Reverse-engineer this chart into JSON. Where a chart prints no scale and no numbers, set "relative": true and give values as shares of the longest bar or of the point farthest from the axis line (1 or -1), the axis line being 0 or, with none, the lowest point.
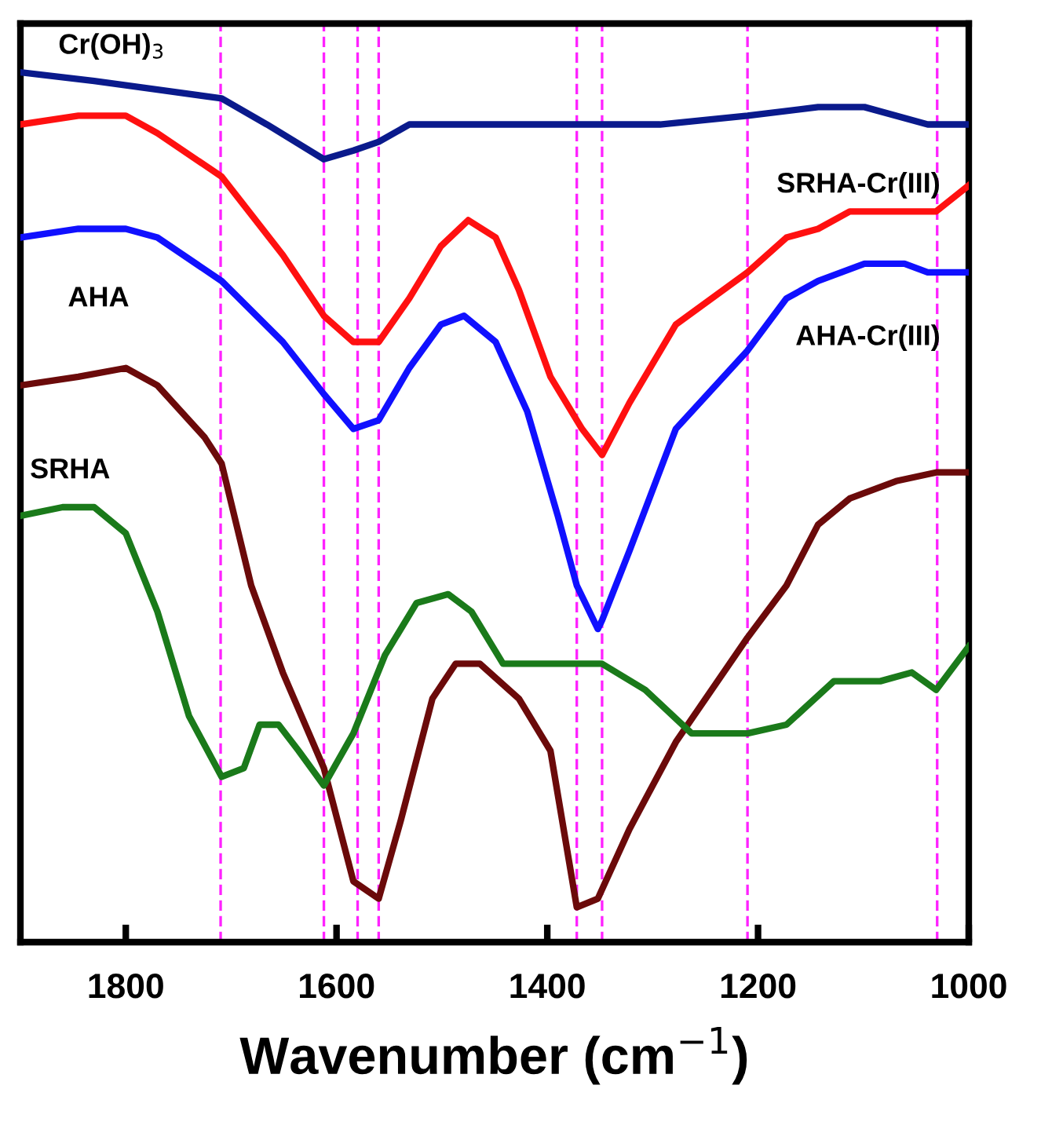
{
  "chart_data": {
    "type": "line",
    "relative": true,
    "xlabel": "Wavenumber (cm$^{−1}$)",
    "xlim": [
      1900,
      1000
    ],
    "xticks": [
      1800,
      1600,
      1400,
      1200,
      1000
    ],
    "tick_labels": "x",
    "grid": false,
    "legend": false,
    "line_style": "solid",
    "marker": "none",
    "series": [
      {
        "name": "Cr(OH)$_{3}$",
        "color": "#0a1a8c",
        "x": [
          1900,
          1830,
          1770,
          1709,
          1666,
          1612,
          1584,
          1560,
          1531,
          1472,
          1397,
          1348,
          1293,
          1210,
          1143,
          1099,
          1039,
          1000
        ],
        "values": [
          1.0,
          0.99,
          0.98,
          0.97,
          0.94,
          0.9,
          0.91,
          0.92,
          0.94,
          0.94,
          0.94,
          0.94,
          0.94,
          0.95,
          0.96,
          0.96,
          0.94,
          0.94
        ]
      },
      {
        "name": "SRHA-Cr(III)",
        "color": "#ff1010",
        "x": [
          1900,
          1845,
          1800,
          1770,
          1709,
          1651,
          1612,
          1584,
          1560,
          1531,
          1501,
          1475,
          1449,
          1427,
          1397,
          1367,
          1348,
          1322,
          1278,
          1210,
          1173,
          1143,
          1113,
          1069,
          1031,
          1000
        ],
        "values": [
          0.94,
          0.95,
          0.95,
          0.93,
          0.88,
          0.79,
          0.72,
          0.69,
          0.69,
          0.74,
          0.8,
          0.83,
          0.81,
          0.75,
          0.65,
          0.59,
          0.56,
          0.62,
          0.71,
          0.77,
          0.81,
          0.82,
          0.84,
          0.84,
          0.84,
          0.87
        ]
      },
      {
        "name": "AHA-Cr(III)",
        "color": "#1010ff",
        "x": [
          1900,
          1845,
          1800,
          1770,
          1709,
          1651,
          1612,
          1584,
          1560,
          1531,
          1501,
          1479,
          1449,
          1419,
          1390,
          1372,
          1352,
          1348,
          1322,
          1278,
          1210,
          1173,
          1143,
          1099,
          1061,
          1039,
          1016,
          1000
        ],
        "values": [
          0.81,
          0.82,
          0.82,
          0.81,
          0.76,
          0.69,
          0.63,
          0.59,
          0.6,
          0.66,
          0.71,
          0.72,
          0.69,
          0.61,
          0.49,
          0.41,
          0.36,
          0.37,
          0.45,
          0.59,
          0.68,
          0.74,
          0.76,
          0.78,
          0.78,
          0.77,
          0.77,
          0.77
        ]
      },
      {
        "name": "AHA",
        "color": "#6b0a0a",
        "x": [
          1900,
          1845,
          1800,
          1770,
          1725,
          1709,
          1681,
          1651,
          1612,
          1584,
          1560,
          1539,
          1509,
          1487,
          1464,
          1427,
          1397,
          1372,
          1352,
          1322,
          1278,
          1210,
          1173,
          1143,
          1113,
          1069,
          1031,
          1000
        ],
        "values": [
          0.64,
          0.65,
          0.66,
          0.64,
          0.58,
          0.55,
          0.41,
          0.31,
          0.2,
          0.07,
          0.05,
          0.14,
          0.28,
          0.32,
          0.32,
          0.28,
          0.22,
          0.04,
          0.05,
          0.13,
          0.23,
          0.35,
          0.41,
          0.48,
          0.51,
          0.53,
          0.54,
          0.54
        ]
      },
      {
        "name": "SRHA",
        "color": "#1a7a1a",
        "x": [
          1900,
          1860,
          1830,
          1800,
          1770,
          1740,
          1709,
          1688,
          1673,
          1655,
          1636,
          1612,
          1584,
          1554,
          1524,
          1494,
          1472,
          1442,
          1412,
          1372,
          1348,
          1307,
          1263,
          1210,
          1173,
          1128,
          1084,
          1054,
          1031,
          1000
        ],
        "values": [
          0.49,
          0.5,
          0.5,
          0.47,
          0.38,
          0.26,
          0.19,
          0.2,
          0.25,
          0.25,
          0.22,
          0.18,
          0.24,
          0.33,
          0.39,
          0.4,
          0.38,
          0.32,
          0.32,
          0.32,
          0.32,
          0.29,
          0.24,
          0.24,
          0.25,
          0.3,
          0.3,
          0.31,
          0.29,
          0.34
        ]
      }
    ],
    "ref_lines": [
      {
        "axis": "x",
        "value": 1710,
        "color": "#ff22ff",
        "line_style": "dashed"
      },
      {
        "axis": "x",
        "value": 1612,
        "color": "#ff22ff",
        "line_style": "dashed"
      },
      {
        "axis": "x",
        "value": 1580,
        "color": "#ff22ff",
        "line_style": "dashed"
      },
      {
        "axis": "x",
        "value": 1560,
        "color": "#ff22ff",
        "line_style": "dashed"
      },
      {
        "axis": "x",
        "value": 1372,
        "color": "#ff22ff",
        "line_style": "dashed"
      },
      {
        "axis": "x",
        "value": 1348,
        "color": "#ff22ff",
        "line_style": "dashed"
      },
      {
        "axis": "x",
        "value": 1210,
        "color": "#ff22ff",
        "line_style": "dashed"
      },
      {
        "axis": "x",
        "value": 1030,
        "color": "#ff22ff",
        "line_style": "dashed"
      }
    ]
  }
}
